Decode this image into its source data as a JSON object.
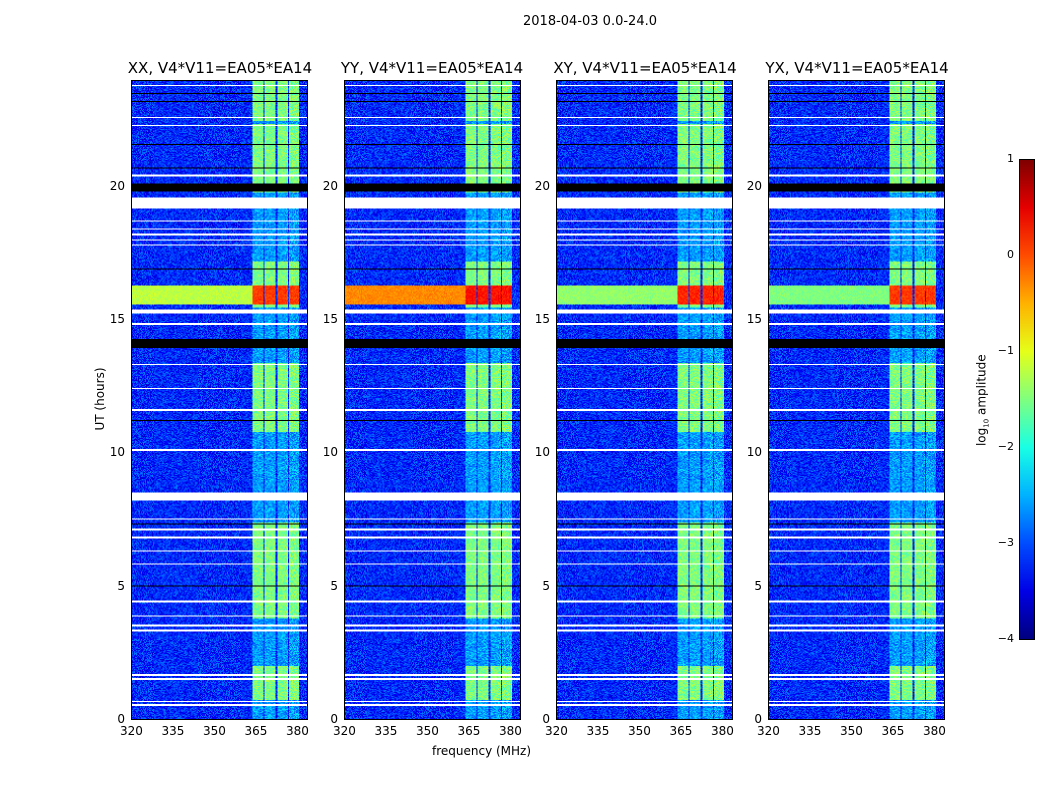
{
  "chart_data": {
    "type": "heatmap",
    "title": "2018-04-03 0.0-24.0",
    "xlabel": "frequency (MHz)",
    "ylabel": "UT (hours)",
    "xlim": [
      320,
      384
    ],
    "ylim": [
      0,
      24
    ],
    "xticks": [
      "320",
      "335",
      "350",
      "365",
      "380"
    ],
    "yticks": [
      "0",
      "5",
      "10",
      "15",
      "20"
    ],
    "colorbar": {
      "label": "log10 amplitude",
      "label_main": "log",
      "label_sub": "10",
      "label_rest": " amplitude",
      "range": [
        -4,
        1
      ],
      "ticks": [
        "1",
        "0",
        "−1",
        "−2",
        "−3",
        "−4"
      ],
      "colormap": "jet"
    },
    "panels": [
      {
        "title": "XX, V4*V11=EA05*EA14",
        "event_broadband": -1.2,
        "event_bands": 0.1
      },
      {
        "title": "YY, V4*V11=EA05*EA14",
        "event_broadband": -0.3,
        "event_bands": 0.3
      },
      {
        "title": "XY, V4*V11=EA05*EA14",
        "event_broadband": -1.4,
        "event_bands": 0.2
      },
      {
        "title": "YX, V4*V11=EA05*EA14",
        "event_broadband": -1.5,
        "event_bands": 0.1
      }
    ],
    "background_log_amplitude": -3.2,
    "rfi_bands_mhz": [
      [
        364,
        368
      ],
      [
        368.5,
        372.5
      ],
      [
        373,
        377
      ],
      [
        377.5,
        381
      ]
    ],
    "rfi_active_hours": [
      [
        0.7,
        2.0
      ],
      [
        3.8,
        7.4
      ],
      [
        10.8,
        13.4
      ],
      [
        15.5,
        17.2
      ],
      [
        19.8,
        22.4
      ],
      [
        22.5,
        24
      ]
    ],
    "rfi_band_log_amplitude": -1.5,
    "strong_event_hours": [
      15.6,
      16.3
    ],
    "flagged_hours_white": [
      [
        0.48,
        0.55
      ],
      [
        0.62,
        0.68
      ],
      [
        1.48,
        1.55
      ],
      [
        1.62,
        1.68
      ],
      [
        3.3,
        3.36
      ],
      [
        3.5,
        3.55
      ],
      [
        3.85,
        3.9
      ],
      [
        4.4,
        4.45
      ],
      [
        5.8,
        5.86
      ],
      [
        6.3,
        6.35
      ],
      [
        6.8,
        6.86
      ],
      [
        7.1,
        7.15
      ],
      [
        7.5,
        7.55
      ],
      [
        8.2,
        8.5
      ],
      [
        10.1,
        10.15
      ],
      [
        11.6,
        11.66
      ],
      [
        12.4,
        12.45
      ],
      [
        13.3,
        13.36
      ],
      [
        14.8,
        14.9
      ],
      [
        15.25,
        15.4
      ],
      [
        17.8,
        17.86
      ],
      [
        18.0,
        18.05
      ],
      [
        18.2,
        18.25
      ],
      [
        18.4,
        18.45
      ],
      [
        18.7,
        18.75
      ],
      [
        19.2,
        19.6
      ],
      [
        20.4,
        20.46
      ],
      [
        22.3,
        22.36
      ],
      [
        22.6,
        22.66
      ],
      [
        23.8,
        23.86
      ]
    ],
    "zero_hours_black": [
      [
        13.95,
        14.3
      ],
      [
        19.85,
        20.15
      ],
      [
        5.0,
        5.04
      ],
      [
        11.2,
        11.24
      ],
      [
        16.9,
        16.94
      ],
      [
        20.7,
        20.74
      ],
      [
        21.6,
        21.64
      ],
      [
        23.2,
        23.25
      ],
      [
        23.5,
        23.54
      ],
      [
        7.3,
        7.34
      ],
      [
        4.0,
        4.03
      ]
    ]
  }
}
